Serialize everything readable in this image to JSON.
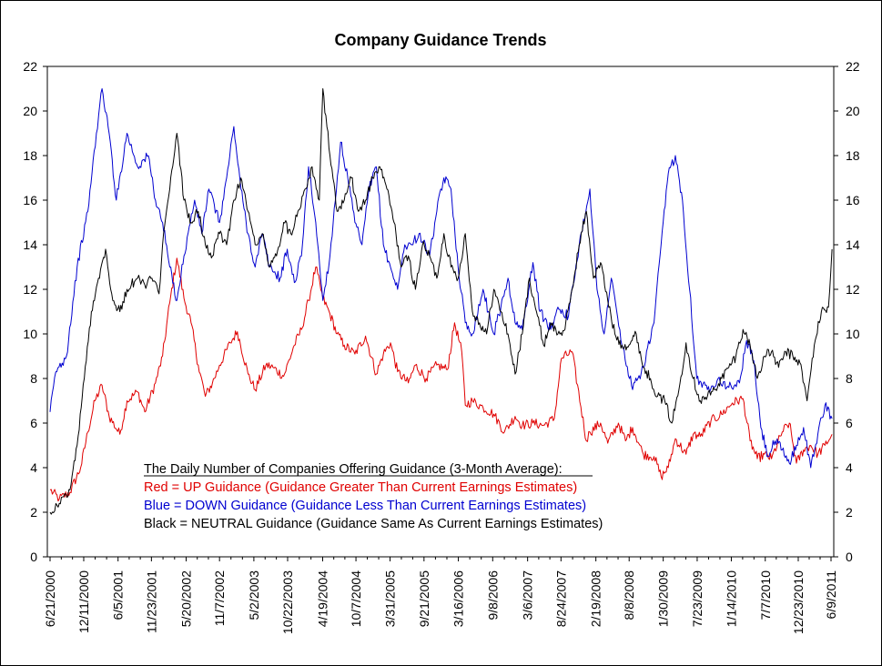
{
  "chart_data": {
    "type": "line",
    "title": "Company Guidance Trends",
    "xlabel": "",
    "ylabel": "",
    "ylim": [
      0,
      22
    ],
    "yticks": [
      0,
      2,
      4,
      6,
      8,
      10,
      12,
      14,
      16,
      18,
      20,
      22
    ],
    "secondary_y_axis": true,
    "grid": false,
    "x_tick_labels": [
      "6/21/2000",
      "12/11/2000",
      "6/5/2001",
      "11/23/2001",
      "5/20/2002",
      "11/7/2002",
      "5/2/2003",
      "10/22/2003",
      "4/19/2004",
      "10/7/2004",
      "3/31/2005",
      "9/21/2005",
      "3/16/2006",
      "9/8/2006",
      "3/6/2007",
      "8/24/2007",
      "2/19/2008",
      "8/8/2008",
      "1/30/2009",
      "7/23/2009",
      "1/14/2010",
      "7/7/2010",
      "12/23/2010",
      "6/9/2011"
    ],
    "legend": {
      "placement": "lower-left",
      "heading": "The Daily Number of Companies Offering Guidance (3-Month Average):",
      "lines": [
        {
          "text": "Red = UP Guidance (Guidance Greater Than Current Earnings Estimates)",
          "color": "#e00000"
        },
        {
          "text": "Blue = DOWN Guidance (Guidance Less Than Current Earnings Estimates)",
          "color": "#0000d0"
        },
        {
          "text": "Black = NEUTRAL Guidance (Guidance Same As Current Earnings Estimates)",
          "color": "#000000"
        }
      ]
    },
    "series": [
      {
        "color": "#e00000",
        "x": [
          2000.47,
          2000.6,
          2000.75,
          2000.9,
          2001.0,
          2001.1,
          2001.2,
          2001.3,
          2001.45,
          2001.55,
          2001.7,
          2001.8,
          2001.95,
          2002.05,
          2002.15,
          2002.25,
          2002.35,
          2002.45,
          2002.55,
          2002.65,
          2002.75,
          2002.85,
          2003.0,
          2003.1,
          2003.25,
          2003.35,
          2003.5,
          2003.6,
          2003.75,
          2003.9,
          2004.0,
          2004.1,
          2004.2,
          2004.3,
          2004.4,
          2004.5,
          2004.6,
          2004.75,
          2004.9,
          2005.05,
          2005.15,
          2005.25,
          2005.35,
          2005.5,
          2005.6,
          2005.75,
          2005.9,
          2006.05,
          2006.15,
          2006.25,
          2006.3,
          2006.4,
          2006.55,
          2006.7,
          2006.85,
          2007.0,
          2007.1,
          2007.25,
          2007.4,
          2007.55,
          2007.65,
          2007.8,
          2008.0,
          2008.05,
          2008.2,
          2008.3,
          2008.45,
          2008.55,
          2008.65,
          2008.8,
          2008.95,
          2009.05,
          2009.15,
          2009.25,
          2009.4,
          2009.5,
          2009.6,
          2009.75,
          2009.9,
          2010.05,
          2010.2,
          2010.3,
          2010.4,
          2010.5,
          2010.6,
          2010.75,
          2010.85,
          2010.95,
          2011.05,
          2011.15,
          2011.25,
          2011.35,
          2011.45
        ],
        "values": [
          3.0,
          2.6,
          2.9,
          4.0,
          5.6,
          7.0,
          7.7,
          6.3,
          5.5,
          7.0,
          7.4,
          6.5,
          7.8,
          9.0,
          11.4,
          13.4,
          11.6,
          10.5,
          8.6,
          7.2,
          7.8,
          8.6,
          9.6,
          10.1,
          8.2,
          7.5,
          8.6,
          8.5,
          8.1,
          9.5,
          10.2,
          11.5,
          13.0,
          11.6,
          10.9,
          10.0,
          9.5,
          9.1,
          9.9,
          8.2,
          9.1,
          9.6,
          8.3,
          7.8,
          8.6,
          8.0,
          8.6,
          8.4,
          10.5,
          9.2,
          6.8,
          7.0,
          6.7,
          6.4,
          5.6,
          6.3,
          5.9,
          6.0,
          5.9,
          6.2,
          8.9,
          9.2,
          5.2,
          5.6,
          6.0,
          5.1,
          6.0,
          5.2,
          5.8,
          4.6,
          4.5,
          3.6,
          4.0,
          5.3,
          4.6,
          5.5,
          5.4,
          6.1,
          6.4,
          6.9,
          7.1,
          5.2,
          4.4,
          4.6,
          4.4,
          5.6,
          6.0,
          4.2,
          4.8,
          5.0,
          4.6,
          5.0,
          5.5
        ]
      },
      {
        "color": "#0000d0",
        "x": [
          2000.47,
          2000.55,
          2000.7,
          2000.85,
          2001.0,
          2001.12,
          2001.2,
          2001.3,
          2001.4,
          2001.55,
          2001.7,
          2001.85,
          2001.95,
          2002.05,
          2002.15,
          2002.25,
          2002.35,
          2002.5,
          2002.6,
          2002.7,
          2002.85,
          2002.95,
          2003.05,
          2003.15,
          2003.25,
          2003.35,
          2003.45,
          2003.55,
          2003.7,
          2003.8,
          2003.9,
          2004.0,
          2004.1,
          2004.2,
          2004.3,
          2004.4,
          2004.55,
          2004.65,
          2004.75,
          2004.85,
          2004.95,
          2005.05,
          2005.15,
          2005.25,
          2005.35,
          2005.45,
          2005.55,
          2005.65,
          2005.8,
          2005.9,
          2006.0,
          2006.1,
          2006.2,
          2006.3,
          2006.4,
          2006.55,
          2006.7,
          2006.8,
          2006.9,
          2007.0,
          2007.1,
          2007.25,
          2007.35,
          2007.5,
          2007.6,
          2007.75,
          2007.9,
          2008.05,
          2008.15,
          2008.25,
          2008.35,
          2008.5,
          2008.65,
          2008.8,
          2008.95,
          2009.05,
          2009.15,
          2009.25,
          2009.35,
          2009.45,
          2009.55,
          2009.7,
          2009.85,
          2010.0,
          2010.15,
          2010.25,
          2010.35,
          2010.45,
          2010.55,
          2010.65,
          2010.75,
          2010.85,
          2010.95,
          2011.05,
          2011.15,
          2011.25,
          2011.35,
          2011.45
        ],
        "values": [
          6.5,
          8.3,
          9.0,
          13.0,
          15.5,
          19.0,
          21.0,
          19.0,
          16.0,
          19.0,
          17.5,
          18.0,
          16.0,
          15.0,
          13.0,
          11.5,
          13.5,
          16.0,
          14.5,
          16.5,
          15.0,
          17.0,
          19.3,
          16.5,
          14.5,
          13.0,
          14.5,
          13.0,
          12.5,
          13.8,
          12.3,
          13.5,
          17.5,
          15.0,
          11.5,
          13.5,
          18.6,
          17.0,
          15.0,
          14.0,
          16.5,
          17.5,
          14.0,
          13.0,
          12.0,
          14.0,
          14.0,
          14.5,
          13.5,
          15.5,
          17.0,
          16.5,
          13.0,
          10.5,
          10.0,
          12.0,
          10.0,
          11.2,
          12.5,
          10.5,
          10.2,
          13.2,
          11.0,
          10.2,
          11.2,
          10.8,
          14.0,
          16.5,
          12.0,
          10.0,
          12.5,
          9.5,
          7.5,
          8.5,
          10.5,
          14.0,
          17.2,
          18.0,
          16.0,
          12.0,
          8.0,
          7.5,
          8.0,
          7.6,
          7.8,
          9.7,
          8.8,
          5.8,
          4.5,
          5.2,
          4.8,
          4.2,
          5.0,
          5.8,
          4.0,
          5.5,
          6.8,
          6.2
        ]
      },
      {
        "color": "#000000",
        "x": [
          2000.47,
          2000.6,
          2000.75,
          2000.85,
          2000.95,
          2001.05,
          2001.15,
          2001.25,
          2001.35,
          2001.45,
          2001.55,
          2001.7,
          2001.8,
          2001.9,
          2002.0,
          2002.05,
          2002.15,
          2002.25,
          2002.35,
          2002.45,
          2002.55,
          2002.65,
          2002.75,
          2002.85,
          2002.95,
          2003.05,
          2003.15,
          2003.25,
          2003.35,
          2003.45,
          2003.55,
          2003.65,
          2003.75,
          2003.85,
          2003.95,
          2004.05,
          2004.15,
          2004.25,
          2004.3,
          2004.4,
          2004.5,
          2004.6,
          2004.7,
          2004.8,
          2004.9,
          2005.0,
          2005.1,
          2005.2,
          2005.3,
          2005.4,
          2005.5,
          2005.6,
          2005.7,
          2005.8,
          2005.9,
          2006.0,
          2006.1,
          2006.2,
          2006.3,
          2006.4,
          2006.5,
          2006.6,
          2006.7,
          2006.8,
          2006.9,
          2007.0,
          2007.1,
          2007.2,
          2007.3,
          2007.4,
          2007.5,
          2007.6,
          2007.7,
          2007.8,
          2007.9,
          2008.0,
          2008.1,
          2008.2,
          2008.3,
          2008.4,
          2008.5,
          2008.6,
          2008.7,
          2008.8,
          2008.9,
          2009.0,
          2009.1,
          2009.2,
          2009.3,
          2009.4,
          2009.5,
          2009.6,
          2009.7,
          2009.8,
          2009.9,
          2010.0,
          2010.1,
          2010.2,
          2010.3,
          2010.4,
          2010.5,
          2010.6,
          2010.7,
          2010.8,
          2010.9,
          2011.0,
          2011.1,
          2011.2,
          2011.3,
          2011.4,
          2011.45
        ],
        "values": [
          2.0,
          2.4,
          3.0,
          5.0,
          8.0,
          11.0,
          12.5,
          13.8,
          11.5,
          11.0,
          12.0,
          12.5,
          12.2,
          12.5,
          11.8,
          14.0,
          16.5,
          19.0,
          16.0,
          15.0,
          15.5,
          14.0,
          13.5,
          14.5,
          14.0,
          16.0,
          17.0,
          15.5,
          14.0,
          14.5,
          13.0,
          13.5,
          15.0,
          14.5,
          15.5,
          16.5,
          17.5,
          16.0,
          21.0,
          18.0,
          15.5,
          16.0,
          17.0,
          15.5,
          16.0,
          17.0,
          17.5,
          16.5,
          15.0,
          13.0,
          13.5,
          12.0,
          14.0,
          13.5,
          12.5,
          14.5,
          13.0,
          12.5,
          14.5,
          11.0,
          10.5,
          10.0,
          12.0,
          11.0,
          10.0,
          8.2,
          10.0,
          12.5,
          11.0,
          9.5,
          10.5,
          10.0,
          10.2,
          12.0,
          14.0,
          15.5,
          12.5,
          13.2,
          11.5,
          10.0,
          9.5,
          9.5,
          10.0,
          8.5,
          8.0,
          7.2,
          7.0,
          6.0,
          7.5,
          9.6,
          8.0,
          7.0,
          7.2,
          7.5,
          8.0,
          8.5,
          9.0,
          10.2,
          9.5,
          8.0,
          9.0,
          9.2,
          8.5,
          9.2,
          9.0,
          8.7,
          7.0,
          9.5,
          11.0,
          11.2,
          13.8
        ]
      }
    ]
  }
}
